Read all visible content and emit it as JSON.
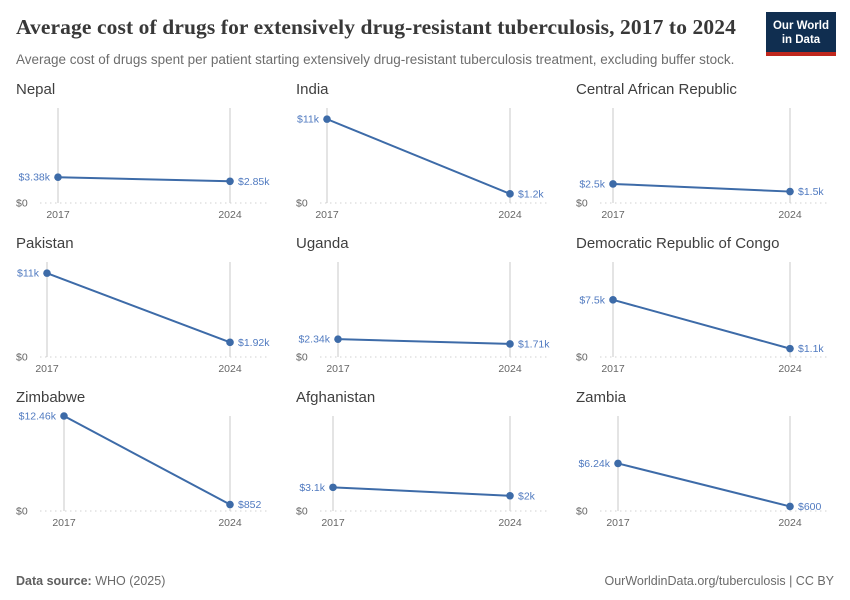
{
  "header": {
    "title": "Average cost of drugs for extensively drug-resistant tuberculosis, 2017 to 2024",
    "subtitle": "Average cost of drugs spent per patient starting extensively drug-resistant tuberculosis treatment, excluding buffer stock.",
    "logo": {
      "line1": "Our World",
      "line2": "in Data",
      "bg_color": "#102e50",
      "accent_color": "#c0271d"
    }
  },
  "footer": {
    "source_label": "Data source:",
    "source_value": " WHO (2025)",
    "link": "OurWorldinData.org/tuberculosis | CC BY"
  },
  "chart_data": {
    "type": "line",
    "layout": "small-multiples-3x3",
    "x": [
      2017,
      2024
    ],
    "x_tick_labels": [
      "2017",
      "2024"
    ],
    "y_zero_label": "$0",
    "shared_ylim": [
      0,
      12460
    ],
    "unit": "US$ per patient",
    "panels": [
      {
        "title": "Nepal",
        "values": [
          3380,
          2850
        ],
        "labels": [
          "$3.38k",
          "$2.85k"
        ]
      },
      {
        "title": "India",
        "values": [
          11000,
          1200
        ],
        "labels": [
          "$11k",
          "$1.2k"
        ]
      },
      {
        "title": "Central African Republic",
        "values": [
          2500,
          1500
        ],
        "labels": [
          "$2.5k",
          "$1.5k"
        ]
      },
      {
        "title": "Pakistan",
        "values": [
          11000,
          1920
        ],
        "labels": [
          "$11k",
          "$1.92k"
        ]
      },
      {
        "title": "Uganda",
        "values": [
          2340,
          1710
        ],
        "labels": [
          "$2.34k",
          "$1.71k"
        ]
      },
      {
        "title": "Democratic Republic of Congo",
        "values": [
          7500,
          1100
        ],
        "labels": [
          "$7.5k",
          "$1.1k"
        ]
      },
      {
        "title": "Zimbabwe",
        "values": [
          12460,
          852
        ],
        "labels": [
          "$12.46k",
          "$852"
        ]
      },
      {
        "title": "Afghanistan",
        "values": [
          3100,
          2000
        ],
        "labels": [
          "$3.1k",
          "$2k"
        ]
      },
      {
        "title": "Zambia",
        "values": [
          6240,
          600
        ],
        "labels": [
          "$6.24k",
          "$600"
        ]
      }
    ],
    "line_color": "#3d6ba8",
    "label_color": "#507ac0",
    "axis_color": "#666666",
    "grid_color": "#c9c9c9",
    "zero_line_color": "#d2d2d2"
  }
}
